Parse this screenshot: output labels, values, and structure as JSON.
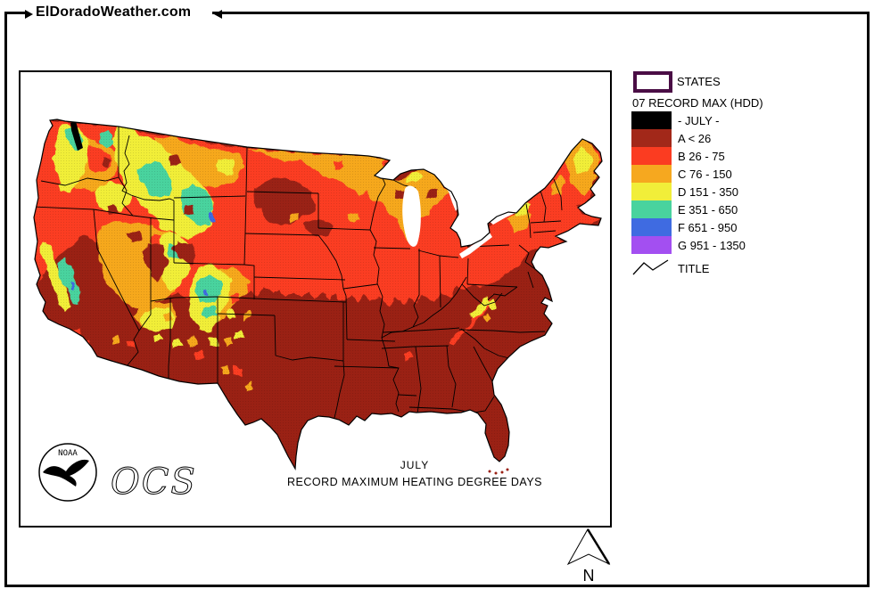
{
  "header": {
    "site": "ElDoradoWeather.com"
  },
  "legend": {
    "states_label": "STATES",
    "states_outline_color": "#4a0d45",
    "heading": "07 RECORD MAX (HDD)",
    "items": [
      {
        "label": "- JULY -",
        "color": "#000000"
      },
      {
        "label": "A < 26",
        "color": "#a22819"
      },
      {
        "label": "B 26 - 75",
        "color": "#fb3c21"
      },
      {
        "label": "C 76 - 150",
        "color": "#f6a81f"
      },
      {
        "label": "D 151 - 350",
        "color": "#f1ee39"
      },
      {
        "label": "E 351 - 650",
        "color": "#49d39e"
      },
      {
        "label": "F 651 - 950",
        "color": "#3f6be1"
      },
      {
        "label": "G 951 - 1350",
        "color": "#a34ff1"
      }
    ],
    "title_label": "TITLE"
  },
  "map": {
    "title_line1": "JULY",
    "title_line2": "RECORD MAXIMUM HEATING DEGREE DAYS",
    "compass_label": "N",
    "noaa_label": "NOAA",
    "ocs_label": "OCS",
    "base_color": "#9a2114"
  }
}
